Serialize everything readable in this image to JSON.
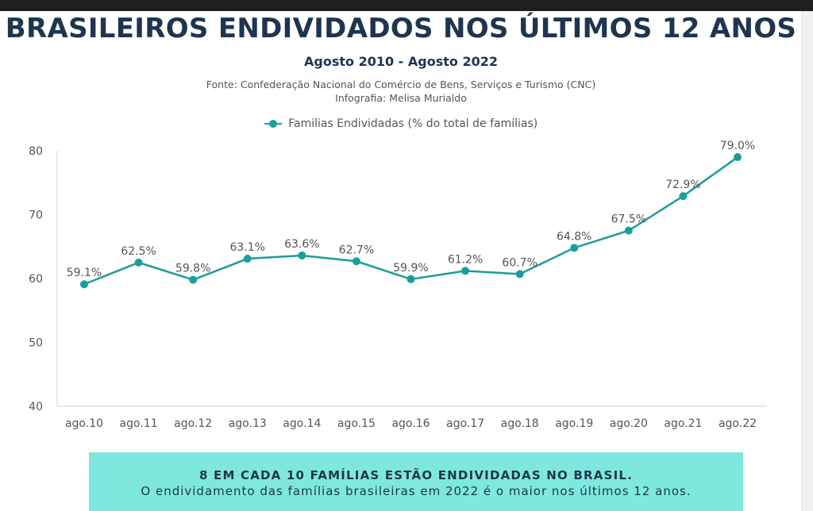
{
  "chart_data": {
    "type": "line",
    "title": "BRASILEIROS ENDIVIDADOS NOS ÚLTIMOS 12 ANOS",
    "subtitle": "Agosto 2010 - Agosto 2022",
    "source_line_1": "Fonte: Confederação Nacional do Comércio de Bens, Serviços e Turismo (CNC)",
    "source_line_2": "Infografia: Melisa Murialdo",
    "categories": [
      "ago.10",
      "ago.11",
      "ago.12",
      "ago.13",
      "ago.14",
      "ago.15",
      "ago.16",
      "ago.17",
      "ago.18",
      "ago.19",
      "ago.20",
      "ago.21",
      "ago.22"
    ],
    "series": [
      {
        "name": "Familias Endividadas (% do total de famílias)",
        "values": [
          59.1,
          62.5,
          59.8,
          63.1,
          63.6,
          62.7,
          59.9,
          61.2,
          60.7,
          64.8,
          67.5,
          72.9,
          79.0
        ],
        "labels": [
          "59.1%",
          "62.5%",
          "59.8%",
          "63.1%",
          "63.6%",
          "62.7%",
          "59.9%",
          "61.2%",
          "60.7%",
          "64.8%",
          "67.5%",
          "72.9%",
          "79.0%"
        ],
        "color": "#1a9e9a"
      }
    ],
    "ylim": [
      40,
      80
    ],
    "yticks": [
      "40",
      "50",
      "60",
      "70",
      "80"
    ],
    "xlabel": "",
    "ylabel": "",
    "grid": false,
    "legend": "top-center"
  },
  "banner": {
    "headline": "8 EM CADA 10 FAMÍLIAS ESTÃO ENDIVIDADAS NO BRASIL.",
    "text": "O endividamento das famílias brasileiras em 2022 é o maior nos últimos 12 anos.",
    "background": "#7ee8de"
  },
  "colors": {
    "title": "#1e3550",
    "accent": "#1a9e9a"
  }
}
